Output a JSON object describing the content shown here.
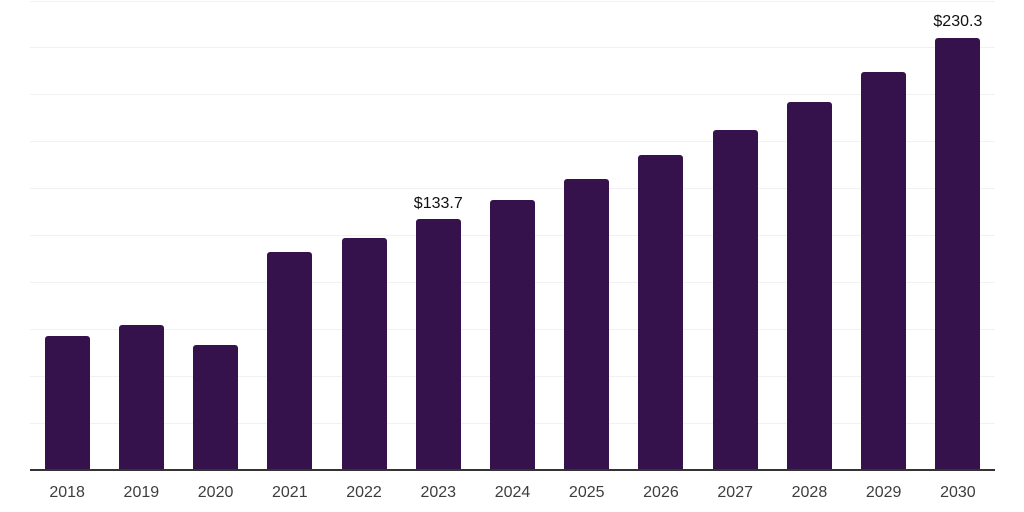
{
  "chart_data": {
    "type": "bar",
    "title": "",
    "xlabel": "",
    "ylabel": "",
    "categories": [
      "2018",
      "2019",
      "2020",
      "2021",
      "2022",
      "2023",
      "2024",
      "2025",
      "2026",
      "2027",
      "2028",
      "2029",
      "2030"
    ],
    "values": [
      71.2,
      77.5,
      66.6,
      116.0,
      123.8,
      133.7,
      144.0,
      155.0,
      167.9,
      181.2,
      196.2,
      212.3,
      230.3
    ],
    "data_labels": [
      "",
      "",
      "",
      "",
      "",
      "$133.7",
      "",
      "",
      "",
      "",
      "",
      "",
      "$230.3"
    ],
    "currency_prefix": "$",
    "ylim": [
      0,
      250
    ],
    "gridline_step": 25,
    "grid": true,
    "legend": false,
    "y_tick_labels_visible": false,
    "colors": {
      "bar": "#36124d",
      "axis_line": "#333333",
      "gridline": "#f1f0f3",
      "tick_label": "#3d3d3d",
      "data_label": "#111111",
      "background": "#ffffff"
    }
  }
}
